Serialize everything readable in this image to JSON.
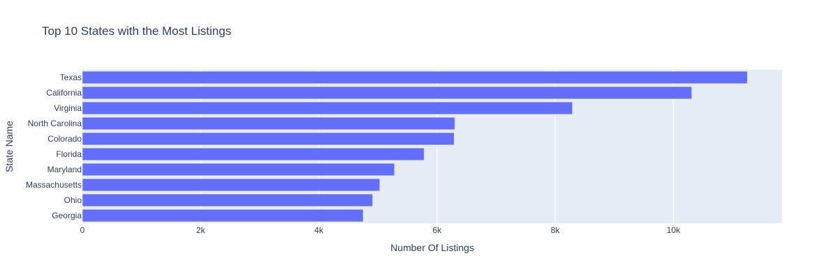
{
  "chart_data": {
    "type": "bar",
    "orientation": "horizontal",
    "title": "Top 10 States with the Most Listings",
    "xlabel": "Number Of Listings",
    "ylabel": "State Name",
    "categories": [
      "Texas",
      "California",
      "Virginia",
      "North Carolina",
      "Colorado",
      "Florida",
      "Maryland",
      "Massachusetts",
      "Ohio",
      "Georgia"
    ],
    "values": [
      11250,
      10310,
      8290,
      6300,
      6290,
      5780,
      5280,
      5030,
      4910,
      4750
    ],
    "xlim": [
      0,
      11840
    ],
    "xticks": [
      0,
      2000,
      4000,
      6000,
      8000,
      10000
    ],
    "xtick_labels": [
      "0",
      "2k",
      "4k",
      "6k",
      "8k",
      "10k"
    ],
    "grid": true,
    "colors": {
      "bar": "#636efa",
      "plot_background": "#e5ecf6",
      "grid": "#ffffff",
      "text": "#2a3f5f"
    }
  }
}
